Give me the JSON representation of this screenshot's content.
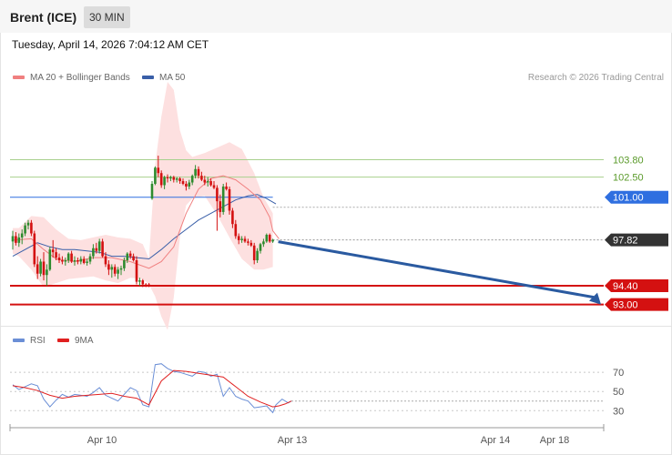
{
  "header": {
    "title": "Brent (ICE)",
    "interval": "30 MIN"
  },
  "datetime": "Tuesday, April 14, 2026 7:04:12 AM CET",
  "legend": {
    "ma20_label": "MA 20 + Bollinger Bands",
    "ma50_label": "MA 50",
    "credit": "Research © 2026 Trading Central",
    "rsi_label": "RSI",
    "rsi_ma_label": "9MA"
  },
  "colors": {
    "ma20": "#f08080",
    "ma50": "#3a5fa8",
    "bands": "#fde0e0",
    "up": "#2e8b2e",
    "down": "#d41111",
    "resistance": "#a8d08d",
    "pivot": "#2f6fe0",
    "support": "#d41111",
    "current": "#333333",
    "arrow": "#2a5aa0",
    "rsi": "#6b8fd6",
    "rsi_ma": "#e02020"
  },
  "chart_data": [
    {
      "type": "candlestick",
      "title": "",
      "x_ticks": [
        "Apr 10",
        "Apr 13",
        "Apr 14",
        "Apr 18"
      ],
      "ylim": [
        90.6,
        109.6
      ],
      "levels": [
        {
          "value": 103.8,
          "label": "103.80",
          "kind": "resistance"
        },
        {
          "value": 102.5,
          "label": "102.50",
          "kind": "resistance"
        },
        {
          "value": 101.0,
          "label": "101.00",
          "kind": "pivot"
        },
        {
          "value": 97.82,
          "label": "97.82",
          "kind": "current"
        },
        {
          "value": 94.4,
          "label": "94.40",
          "kind": "support"
        },
        {
          "value": 93.0,
          "label": "93.00",
          "kind": "support"
        }
      ],
      "forecast": {
        "from": 97.82,
        "to": 93.0
      },
      "candles": [
        [
          97.7,
          98.5,
          97.1,
          98.1
        ],
        [
          98.1,
          98.4,
          97.4,
          97.6
        ],
        [
          97.6,
          98.3,
          97.3,
          98.0
        ],
        [
          98.0,
          98.6,
          97.5,
          98.3
        ],
        [
          98.3,
          99.1,
          98.1,
          98.9
        ],
        [
          98.9,
          99.3,
          98.6,
          99.1
        ],
        [
          99.1,
          99.3,
          98.1,
          98.3
        ],
        [
          98.3,
          98.5,
          95.8,
          96.0
        ],
        [
          96.0,
          96.6,
          94.9,
          95.3
        ],
        [
          95.3,
          96.4,
          95.1,
          96.2
        ],
        [
          96.2,
          96.9,
          94.8,
          95.2
        ],
        [
          95.2,
          96.0,
          94.4,
          95.6
        ],
        [
          95.6,
          97.3,
          95.5,
          97.1
        ],
        [
          97.1,
          97.8,
          96.5,
          96.9
        ],
        [
          96.9,
          97.2,
          96.3,
          96.5
        ],
        [
          96.5,
          96.8,
          96.1,
          96.3
        ],
        [
          96.3,
          96.6,
          96.0,
          96.2
        ],
        [
          96.2,
          96.5,
          95.9,
          96.3
        ],
        [
          96.3,
          96.9,
          96.1,
          96.8
        ],
        [
          96.8,
          97.0,
          96.1,
          96.2
        ],
        [
          96.2,
          96.6,
          95.9,
          96.3
        ],
        [
          96.3,
          96.5,
          96.0,
          96.2
        ],
        [
          96.2,
          96.6,
          96.0,
          96.4
        ],
        [
          96.4,
          96.6,
          96.0,
          96.1
        ],
        [
          96.1,
          96.4,
          95.9,
          96.2
        ],
        [
          96.2,
          96.8,
          96.0,
          96.6
        ],
        [
          96.6,
          97.5,
          96.4,
          97.2
        ],
        [
          97.2,
          97.6,
          96.8,
          97.0
        ],
        [
          97.0,
          97.9,
          96.8,
          97.7
        ],
        [
          97.7,
          97.9,
          96.5,
          96.6
        ],
        [
          96.6,
          96.9,
          95.8,
          96.0
        ],
        [
          96.0,
          96.3,
          95.2,
          95.6
        ],
        [
          95.6,
          96.0,
          95.0,
          95.8
        ],
        [
          95.8,
          96.0,
          95.1,
          95.3
        ],
        [
          95.3,
          95.8,
          94.9,
          95.6
        ],
        [
          95.6,
          95.9,
          95.2,
          95.7
        ],
        [
          95.7,
          96.5,
          95.5,
          96.3
        ],
        [
          96.3,
          96.9,
          96.1,
          96.8
        ],
        [
          96.8,
          97.0,
          96.4,
          96.6
        ],
        [
          96.6,
          96.8,
          96.2,
          96.3
        ],
        [
          96.3,
          96.6,
          94.5,
          94.7
        ],
        [
          94.7,
          95.0,
          94.4,
          94.8
        ],
        [
          94.8,
          94.9,
          94.3,
          94.5
        ],
        [
          94.5,
          94.6,
          94.3,
          94.4
        ],
        [
          94.5,
          94.6,
          94.3,
          94.4
        ],
        [
          100.9,
          102.2,
          100.8,
          102.0
        ],
        [
          102.0,
          103.3,
          101.9,
          103.2
        ],
        [
          103.2,
          104.1,
          102.5,
          102.8
        ],
        [
          102.8,
          103.0,
          101.7,
          101.9
        ],
        [
          101.9,
          102.6,
          101.6,
          102.5
        ],
        [
          102.5,
          102.7,
          102.1,
          102.4
        ],
        [
          102.4,
          102.6,
          102.2,
          102.5
        ],
        [
          102.5,
          102.6,
          102.1,
          102.3
        ],
        [
          102.3,
          102.5,
          102.1,
          102.4
        ],
        [
          102.4,
          102.5,
          102.0,
          102.2
        ],
        [
          102.2,
          102.4,
          101.9,
          102.0
        ],
        [
          102.0,
          102.2,
          101.5,
          101.8
        ],
        [
          101.8,
          102.3,
          101.6,
          102.1
        ],
        [
          102.1,
          102.7,
          101.9,
          102.6
        ],
        [
          102.6,
          103.4,
          102.4,
          103.1
        ],
        [
          103.1,
          103.3,
          102.4,
          102.6
        ],
        [
          102.6,
          102.9,
          102.2,
          102.3
        ],
        [
          102.3,
          102.6,
          101.9,
          102.1
        ],
        [
          102.1,
          102.5,
          101.8,
          102.2
        ],
        [
          102.2,
          102.4,
          101.8,
          101.9
        ],
        [
          101.9,
          102.2,
          101.6,
          101.7
        ],
        [
          101.7,
          101.9,
          98.5,
          100.7
        ],
        [
          100.7,
          101.2,
          99.5,
          99.9
        ],
        [
          99.9,
          102.0,
          99.7,
          101.8
        ],
        [
          101.8,
          102.1,
          101.5,
          101.6
        ],
        [
          101.6,
          101.8,
          99.7,
          100.0
        ],
        [
          100.0,
          100.2,
          98.7,
          99.0
        ],
        [
          99.0,
          99.3,
          97.9,
          98.1
        ],
        [
          98.1,
          98.3,
          97.5,
          97.8
        ],
        [
          97.8,
          98.1,
          97.6,
          97.9
        ],
        [
          97.9,
          98.1,
          97.6,
          97.7
        ],
        [
          97.7,
          97.9,
          97.4,
          97.6
        ],
        [
          97.6,
          97.8,
          97.3,
          97.4
        ],
        [
          97.4,
          97.6,
          96.0,
          96.3
        ],
        [
          96.3,
          97.2,
          96.1,
          97.0
        ],
        [
          97.0,
          97.6,
          96.8,
          97.5
        ],
        [
          97.5,
          97.9,
          97.3,
          97.7
        ],
        [
          97.7,
          98.3,
          97.6,
          98.2
        ],
        [
          98.2,
          98.3,
          97.6,
          97.7
        ],
        [
          97.7,
          97.9,
          97.6,
          97.82
        ]
      ],
      "bands_upper": [
        [
          0,
          98.7
        ],
        [
          2,
          98.7
        ],
        [
          6,
          99.6
        ],
        [
          10,
          99.5
        ],
        [
          14,
          98.6
        ],
        [
          18,
          97.9
        ],
        [
          22,
          97.8
        ],
        [
          26,
          98.0
        ],
        [
          30,
          98.2
        ],
        [
          34,
          98.0
        ],
        [
          38,
          97.9
        ],
        [
          42,
          97.5
        ],
        [
          44,
          96.4
        ],
        [
          46,
          103.4
        ],
        [
          48,
          107.0
        ],
        [
          50,
          109.6
        ],
        [
          52,
          109.0
        ],
        [
          54,
          106.0
        ],
        [
          56,
          104.5
        ],
        [
          58,
          104.0
        ],
        [
          62,
          104.3
        ],
        [
          66,
          104.7
        ],
        [
          70,
          105.1
        ],
        [
          74,
          104.6
        ],
        [
          78,
          102.8
        ],
        [
          81,
          101.0
        ],
        [
          84,
          99.8
        ]
      ],
      "bands_lower": [
        [
          84,
          95.8
        ],
        [
          81,
          95.6
        ],
        [
          78,
          95.6
        ],
        [
          74,
          96.4
        ],
        [
          70,
          98.0
        ],
        [
          66,
          99.7
        ],
        [
          62,
          101.1
        ],
        [
          58,
          100.9
        ],
        [
          56,
          100.4
        ],
        [
          54,
          98.0
        ],
        [
          52,
          93.5
        ],
        [
          50,
          91.1
        ],
        [
          48,
          92.1
        ],
        [
          46,
          93.6
        ],
        [
          44,
          94.5
        ],
        [
          42,
          94.9
        ],
        [
          38,
          95.0
        ],
        [
          34,
          94.6
        ],
        [
          30,
          94.8
        ],
        [
          26,
          95.1
        ],
        [
          22,
          95.0
        ],
        [
          18,
          94.9
        ],
        [
          14,
          94.6
        ],
        [
          10,
          94.3
        ],
        [
          6,
          95.6
        ],
        [
          2,
          96.6
        ],
        [
          0,
          96.8
        ]
      ],
      "ma20": [
        [
          0,
          97.8
        ],
        [
          6,
          97.9
        ],
        [
          10,
          97.1
        ],
        [
          14,
          96.4
        ],
        [
          20,
          96.2
        ],
        [
          26,
          96.5
        ],
        [
          32,
          96.5
        ],
        [
          38,
          96.2
        ],
        [
          44,
          95.7
        ],
        [
          48,
          96.2
        ],
        [
          52,
          97.3
        ],
        [
          56,
          99.8
        ],
        [
          60,
          101.6
        ],
        [
          64,
          102.4
        ],
        [
          68,
          102.6
        ],
        [
          72,
          102.3
        ],
        [
          76,
          101.6
        ],
        [
          80,
          100.8
        ],
        [
          83,
          99.5
        ],
        [
          84,
          98.5
        ],
        [
          86,
          97.9
        ]
      ],
      "ma50": [
        [
          0,
          96.6
        ],
        [
          4,
          97.1
        ],
        [
          8,
          97.6
        ],
        [
          12,
          97.3
        ],
        [
          16,
          97.1
        ],
        [
          20,
          97.1
        ],
        [
          24,
          97.0
        ],
        [
          28,
          96.9
        ],
        [
          32,
          96.6
        ],
        [
          36,
          96.6
        ],
        [
          40,
          96.5
        ],
        [
          44,
          96.4
        ],
        [
          48,
          97.1
        ],
        [
          52,
          97.9
        ],
        [
          56,
          98.6
        ],
        [
          60,
          99.3
        ],
        [
          64,
          99.8
        ],
        [
          68,
          100.3
        ],
        [
          72,
          100.8
        ],
        [
          76,
          101.1
        ],
        [
          79,
          101.2
        ],
        [
          82,
          100.9
        ],
        [
          85,
          100.5
        ]
      ]
    },
    {
      "type": "line",
      "title": "",
      "series": [
        {
          "name": "RSI",
          "values": [
            [
              0,
              57
            ],
            [
              2,
              52
            ],
            [
              4,
              55
            ],
            [
              6,
              58
            ],
            [
              8,
              56
            ],
            [
              10,
              42
            ],
            [
              12,
              34
            ],
            [
              14,
              41
            ],
            [
              16,
              47
            ],
            [
              18,
              44
            ],
            [
              20,
              47
            ],
            [
              22,
              46
            ],
            [
              24,
              45
            ],
            [
              26,
              49
            ],
            [
              28,
              54
            ],
            [
              30,
              46
            ],
            [
              32,
              43
            ],
            [
              34,
              40
            ],
            [
              36,
              47
            ],
            [
              38,
              54
            ],
            [
              40,
              51
            ],
            [
              42,
              36
            ],
            [
              44,
              34
            ],
            [
              46,
              78
            ],
            [
              48,
              79
            ],
            [
              50,
              74
            ],
            [
              52,
              71
            ],
            [
              54,
              70
            ],
            [
              56,
              68
            ],
            [
              58,
              66
            ],
            [
              60,
              71
            ],
            [
              62,
              70
            ],
            [
              64,
              66
            ],
            [
              66,
              68
            ],
            [
              68,
              45
            ],
            [
              70,
              54
            ],
            [
              72,
              45
            ],
            [
              74,
              42
            ],
            [
              76,
              40
            ],
            [
              78,
              33
            ],
            [
              80,
              34
            ],
            [
              82,
              35
            ],
            [
              84,
              28
            ],
            [
              85,
              36
            ],
            [
              87,
              42
            ],
            [
              89,
              38
            ],
            [
              90,
              40
            ]
          ]
        },
        {
          "name": "9MA",
          "values": [
            [
              0,
              56
            ],
            [
              4,
              54
            ],
            [
              8,
              51
            ],
            [
              12,
              46
            ],
            [
              16,
              43
            ],
            [
              20,
              45
            ],
            [
              24,
              46
            ],
            [
              28,
              47
            ],
            [
              32,
              48
            ],
            [
              36,
              45
            ],
            [
              40,
              43
            ],
            [
              44,
              36
            ],
            [
              48,
              61
            ],
            [
              52,
              72
            ],
            [
              56,
              71
            ],
            [
              60,
              69
            ],
            [
              64,
              67
            ],
            [
              68,
              65
            ],
            [
              72,
              55
            ],
            [
              76,
              45
            ],
            [
              80,
              39
            ],
            [
              84,
              34
            ],
            [
              86,
              35
            ],
            [
              88,
              37
            ],
            [
              90,
              40
            ]
          ]
        }
      ],
      "yticks": [
        30,
        50,
        70
      ],
      "ylim": [
        16,
        92
      ]
    }
  ]
}
